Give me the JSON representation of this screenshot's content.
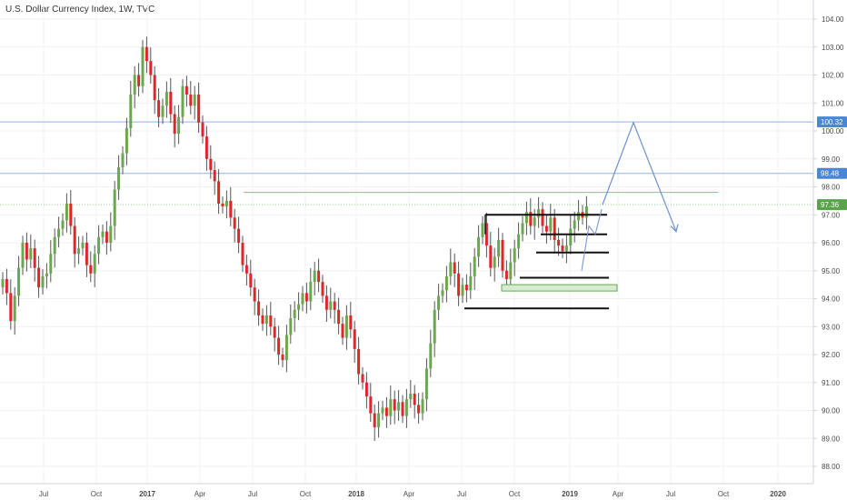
{
  "title": "U.S. Dollar Currency Index, 1W, TVC",
  "chart_data": {
    "type": "candlestick",
    "title": "U.S. Dollar Currency Index, 1W, TVC",
    "ylim": [
      87.6,
      104.6
    ],
    "y_ticks": [
      "104.00",
      "103.00",
      "102.00",
      "101.00",
      "100.00",
      "99.00",
      "98.00",
      "97.00",
      "96.00",
      "95.00",
      "94.00",
      "93.00",
      "92.00",
      "91.00",
      "90.00",
      "89.00",
      "88.00"
    ],
    "x_ticks": [
      {
        "label": "Jul",
        "bold": false
      },
      {
        "label": "Oct",
        "bold": false
      },
      {
        "label": "2017",
        "bold": true
      },
      {
        "label": "Apr",
        "bold": false
      },
      {
        "label": "Jul",
        "bold": false
      },
      {
        "label": "Oct",
        "bold": false
      },
      {
        "label": "2018",
        "bold": true
      },
      {
        "label": "Apr",
        "bold": false
      },
      {
        "label": "Jul",
        "bold": false
      },
      {
        "label": "Oct",
        "bold": false
      },
      {
        "label": "2019",
        "bold": true
      },
      {
        "label": "Apr",
        "bold": false
      },
      {
        "label": "Jul",
        "bold": false
      },
      {
        "label": "Oct",
        "bold": false
      },
      {
        "label": "2020",
        "bold": true
      }
    ],
    "price_labels": [
      {
        "label": "100.32",
        "value": 100.32,
        "color": "#4a86d6"
      },
      {
        "label": "98.48",
        "value": 98.48,
        "color": "#4a86d6"
      },
      {
        "label": "97.36",
        "value": 97.36,
        "color": "#5aa34a"
      }
    ],
    "horizontal_lines": [
      {
        "value": 100.32,
        "color": "#8fb4e4"
      },
      {
        "value": 98.48,
        "color": "#8fb4e4"
      },
      {
        "value": 97.36,
        "color": "#8fcf8f",
        "dashed": true
      }
    ],
    "resistance_line": {
      "value": 97.8,
      "color": "#e98b8b"
    },
    "levels": [
      97.0,
      96.3,
      95.65,
      94.75,
      93.65
    ],
    "projection": [
      97.36,
      100.3,
      96.4
    ],
    "series": [
      {
        "name": "",
        "close": [
          94.7,
          94.2,
          93.2,
          94.1,
          95.1,
          96.0,
          95.4,
          95.8,
          95.1,
          94.4,
          94.8,
          94.9,
          95.6,
          96.2,
          96.5,
          96.8,
          97.4,
          96.6,
          95.6,
          95.8,
          96.0,
          95.2,
          94.9,
          95.6,
          96.2,
          96.4,
          96.0,
          96.6,
          97.9,
          98.7,
          99.2,
          100.1,
          101.3,
          102.0,
          101.6,
          103.0,
          102.5,
          102.0,
          101.1,
          100.5,
          100.9,
          101.4,
          100.6,
          99.9,
          100.5,
          101.6,
          101.3,
          100.9,
          101.3,
          100.3,
          99.8,
          99.0,
          98.6,
          98.2,
          97.4,
          97.3,
          97.5,
          96.9,
          96.5,
          96.0,
          95.2,
          94.9,
          94.4,
          93.9,
          93.4,
          93.1,
          93.4,
          93.0,
          92.6,
          92.0,
          91.8,
          92.7,
          93.3,
          93.6,
          93.8,
          94.2,
          93.9,
          94.6,
          95.0,
          94.6,
          94.1,
          93.6,
          93.9,
          93.6,
          93.1,
          92.6,
          93.4,
          92.9,
          92.2,
          91.3,
          91.0,
          90.5,
          89.9,
          89.4,
          89.9,
          90.1,
          89.8,
          90.4,
          90.0,
          90.3,
          89.8,
          90.4,
          90.6,
          90.2,
          89.9,
          90.4,
          91.5,
          92.4,
          93.6,
          94.1,
          94.3,
          94.8,
          95.3,
          94.9,
          94.1,
          94.5,
          94.3,
          94.8,
          95.5,
          96.2,
          96.7,
          95.9,
          95.1,
          95.5,
          96.1,
          95.0,
          94.7,
          95.3,
          95.8,
          96.3,
          96.7,
          97.1,
          96.6,
          96.9,
          97.2,
          96.6,
          96.4,
          96.9,
          96.1,
          95.9,
          95.7,
          95.9,
          96.5,
          96.8,
          97.1,
          96.9,
          97.3
        ]
      }
    ]
  }
}
